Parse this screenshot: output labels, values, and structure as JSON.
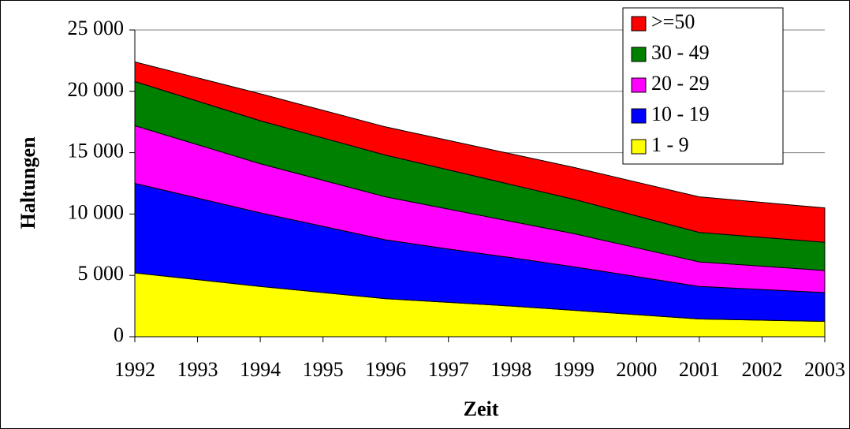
{
  "chart_data": {
    "type": "stacked_area",
    "x_label": "Zeit",
    "y_label": "Haltungen",
    "categories": [
      "1992",
      "1993",
      "1994",
      "1995",
      "1996",
      "1997",
      "1998",
      "1999",
      "2000",
      "2001",
      "2002",
      "2003"
    ],
    "series": [
      {
        "name": "1 - 9",
        "color": "#ffff00",
        "values": [
          5200,
          4650,
          4100,
          3600,
          3100,
          2800,
          2500,
          2150,
          1800,
          1450,
          1350,
          1250
        ]
      },
      {
        "name": "10 - 19",
        "color": "#0000ff",
        "values": [
          7300,
          6650,
          6000,
          5400,
          4800,
          4350,
          3950,
          3550,
          3100,
          2650,
          2500,
          2350
        ]
      },
      {
        "name": "20 - 29",
        "color": "#ff00ff",
        "values": [
          4700,
          4350,
          4000,
          3750,
          3500,
          3250,
          2950,
          2700,
          2350,
          2000,
          1900,
          1800
        ]
      },
      {
        "name": "30 - 49",
        "color": "#008000",
        "values": [
          3600,
          3550,
          3500,
          3450,
          3400,
          3200,
          3000,
          2800,
          2600,
          2400,
          2350,
          2300
        ]
      },
      {
        "name": ">=50",
        "color": "#ff0000",
        "values": [
          1600,
          1900,
          2200,
          2250,
          2300,
          2400,
          2500,
          2600,
          2750,
          2900,
          2850,
          2800
        ]
      }
    ],
    "ylim": [
      0,
      25000
    ],
    "yticks": [
      0,
      {
        "value": 5000,
        "label": "5 000"
      },
      {
        "value": 10000,
        "label": "10 000"
      },
      {
        "value": 15000,
        "label": "15 000"
      },
      {
        "value": 20000,
        "label": "20 000"
      },
      {
        "value": 25000,
        "label": "25 000"
      }
    ],
    "grid": true,
    "legend": "top-right"
  }
}
